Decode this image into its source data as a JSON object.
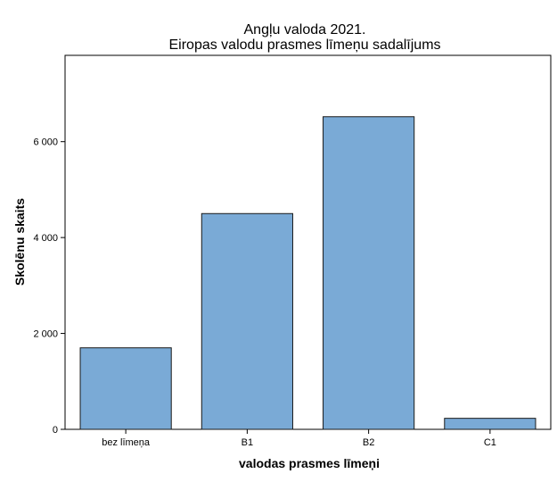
{
  "chart_data": {
    "type": "bar",
    "title": [
      "Angļu valoda 2021.",
      "Eiropas valodu prasmes līmeņu sadalījums"
    ],
    "xlabel": "valodas prasmes līmeņi",
    "ylabel": "Skolēnu skaits",
    "categories": [
      "bez līmeņa",
      "B1",
      "B2",
      "C1"
    ],
    "values": [
      1700,
      4500,
      6520,
      230
    ],
    "ylim": [
      0,
      7800
    ],
    "yticks": [
      0,
      2000,
      4000,
      6000
    ],
    "ytick_labels": [
      "0",
      "2 000",
      "4 000",
      "6 000"
    ],
    "grid": false,
    "legend": "none",
    "colors": {
      "bar_fill": "#7aaad6",
      "bar_stroke": "#1a1a1a",
      "frame": "#000000"
    }
  }
}
